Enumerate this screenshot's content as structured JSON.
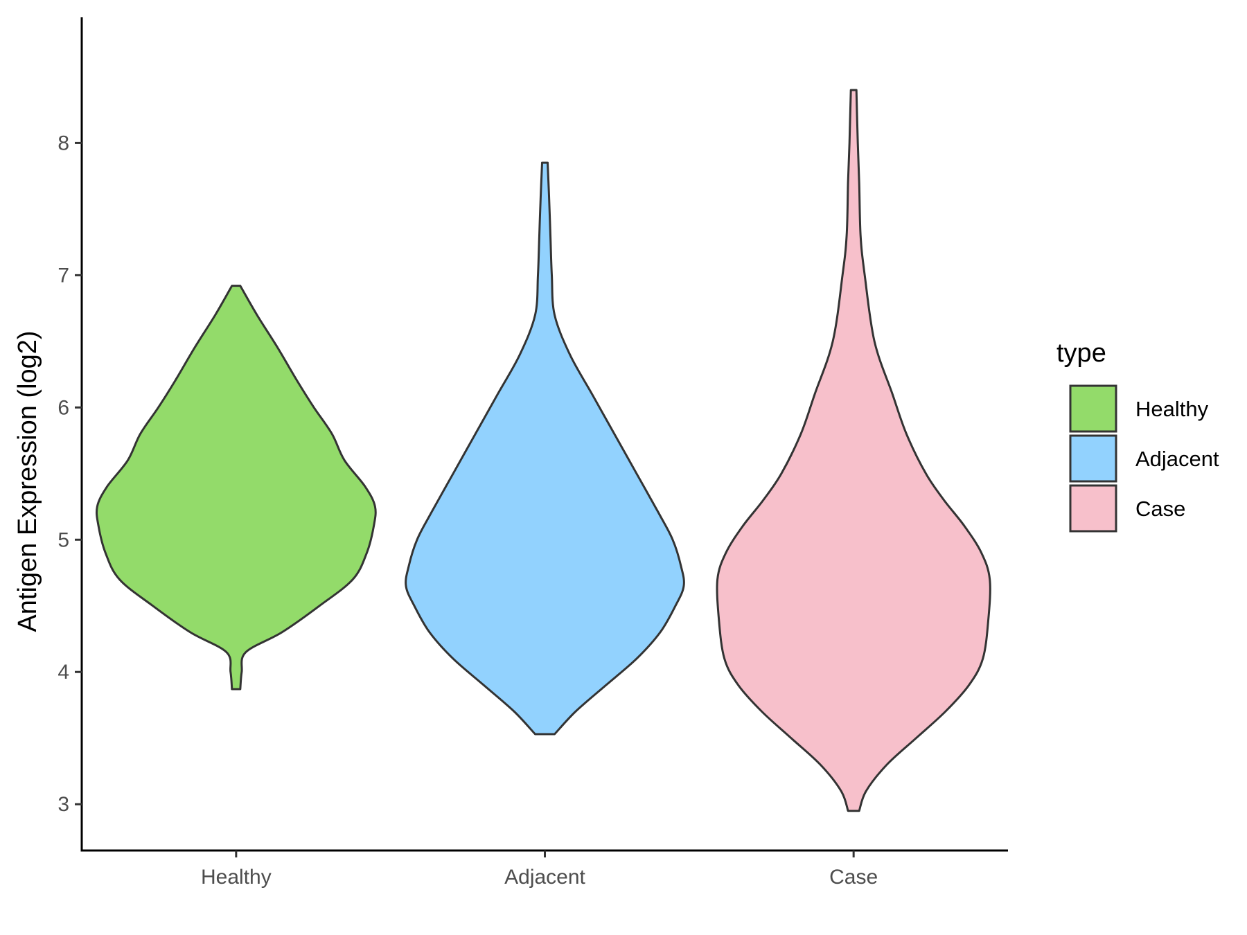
{
  "chart_data": {
    "type": "violin",
    "categories": [
      "Healthy",
      "Adjacent",
      "Case"
    ],
    "ylabel": "Antigen Expression (log2)",
    "xlabel": "",
    "ylim": [
      2.65,
      8.95
    ],
    "yticks": [
      3,
      4,
      5,
      6,
      7,
      8
    ],
    "grid": false,
    "legend": {
      "title": "type",
      "position": "right",
      "entries": [
        "Healthy",
        "Adjacent",
        "Case"
      ]
    },
    "series": [
      {
        "name": "Healthy",
        "color": "#93DB6A",
        "min": 3.87,
        "max": 6.92,
        "density_profile": [
          [
            3.87,
            0.03
          ],
          [
            4.0,
            0.04
          ],
          [
            4.15,
            0.07
          ],
          [
            4.3,
            0.33
          ],
          [
            4.5,
            0.6
          ],
          [
            4.7,
            0.84
          ],
          [
            4.9,
            0.94
          ],
          [
            5.1,
            0.99
          ],
          [
            5.25,
            1.0
          ],
          [
            5.4,
            0.93
          ],
          [
            5.6,
            0.78
          ],
          [
            5.8,
            0.69
          ],
          [
            6.0,
            0.56
          ],
          [
            6.2,
            0.44
          ],
          [
            6.45,
            0.3
          ],
          [
            6.7,
            0.15
          ],
          [
            6.92,
            0.03
          ]
        ]
      },
      {
        "name": "Adjacent",
        "color": "#92D2FE",
        "min": 3.53,
        "max": 7.85,
        "density_profile": [
          [
            3.53,
            0.07
          ],
          [
            3.7,
            0.22
          ],
          [
            3.9,
            0.44
          ],
          [
            4.1,
            0.66
          ],
          [
            4.3,
            0.83
          ],
          [
            4.5,
            0.94
          ],
          [
            4.65,
            1.0
          ],
          [
            4.8,
            0.98
          ],
          [
            5.0,
            0.92
          ],
          [
            5.2,
            0.82
          ],
          [
            5.5,
            0.66
          ],
          [
            5.8,
            0.5
          ],
          [
            6.1,
            0.34
          ],
          [
            6.4,
            0.18
          ],
          [
            6.7,
            0.07
          ],
          [
            7.0,
            0.05
          ],
          [
            7.3,
            0.04
          ],
          [
            7.6,
            0.03
          ],
          [
            7.85,
            0.02
          ]
        ]
      },
      {
        "name": "Case",
        "color": "#F7C0CB",
        "min": 2.95,
        "max": 8.4,
        "density_profile": [
          [
            2.95,
            0.04
          ],
          [
            3.1,
            0.09
          ],
          [
            3.3,
            0.24
          ],
          [
            3.5,
            0.45
          ],
          [
            3.7,
            0.66
          ],
          [
            3.9,
            0.83
          ],
          [
            4.1,
            0.93
          ],
          [
            4.4,
            0.97
          ],
          [
            4.7,
            0.98
          ],
          [
            4.9,
            0.92
          ],
          [
            5.1,
            0.8
          ],
          [
            5.3,
            0.65
          ],
          [
            5.5,
            0.52
          ],
          [
            5.8,
            0.38
          ],
          [
            6.1,
            0.28
          ],
          [
            6.5,
            0.15
          ],
          [
            7.0,
            0.08
          ],
          [
            7.3,
            0.05
          ],
          [
            7.7,
            0.04
          ],
          [
            8.0,
            0.03
          ],
          [
            8.4,
            0.02
          ]
        ]
      }
    ]
  }
}
